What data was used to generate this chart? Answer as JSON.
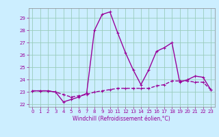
{
  "xlabel": "Windchill (Refroidissement éolien,°C)",
  "background_color": "#cceeff",
  "grid_color": "#99ccbb",
  "line_color": "#990099",
  "hours": [
    0,
    1,
    2,
    3,
    4,
    5,
    6,
    7,
    8,
    9,
    10,
    11,
    12,
    13,
    14,
    15,
    16,
    17,
    18,
    19,
    20,
    21,
    22,
    23
  ],
  "temp": [
    23.1,
    23.1,
    23.1,
    23.0,
    22.8,
    22.6,
    22.7,
    22.8,
    23.0,
    23.1,
    23.2,
    23.3,
    23.3,
    23.3,
    23.3,
    23.3,
    23.5,
    23.6,
    23.9,
    23.9,
    23.9,
    23.8,
    23.8,
    23.2
  ],
  "windchill": [
    23.1,
    23.1,
    23.1,
    23.0,
    22.2,
    22.4,
    22.6,
    22.9,
    28.0,
    29.3,
    29.5,
    27.8,
    26.2,
    24.8,
    23.6,
    24.8,
    26.3,
    26.6,
    27.0,
    23.8,
    24.0,
    24.3,
    24.2,
    23.2
  ],
  "ylim": [
    21.8,
    29.8
  ],
  "yticks": [
    22,
    23,
    24,
    25,
    26,
    27,
    28,
    29
  ],
  "xlim": [
    -0.5,
    23.5
  ],
  "xticks": [
    0,
    1,
    2,
    3,
    4,
    5,
    6,
    7,
    8,
    9,
    10,
    11,
    12,
    13,
    14,
    15,
    16,
    17,
    18,
    19,
    20,
    21,
    22,
    23
  ],
  "spine_color": "#888888",
  "tick_fontsize": 5,
  "xlabel_fontsize": 5.5,
  "linewidth": 1.0,
  "marker_size": 3,
  "marker_ew": 0.8
}
